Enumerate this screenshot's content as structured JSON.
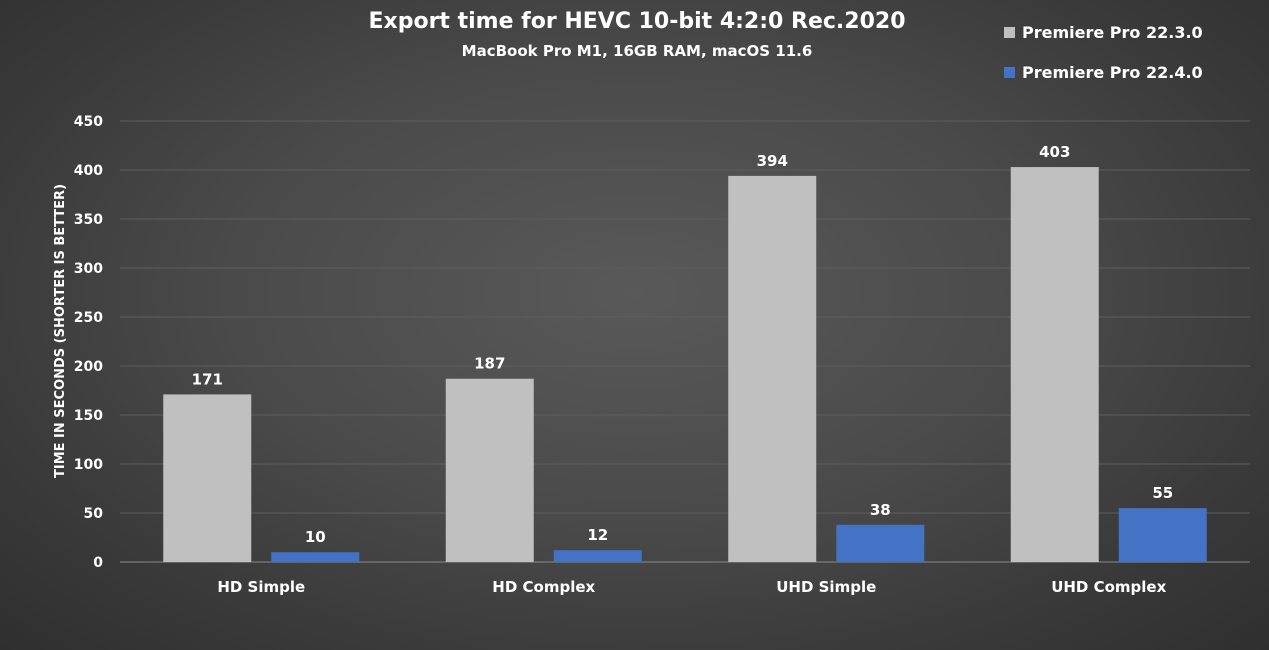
{
  "chart_data": {
    "type": "bar",
    "title": "Export time for HEVC 10-bit 4:2:0 Rec.2020",
    "subtitle": "MacBook Pro M1, 16GB RAM, macOS 11.6",
    "xlabel": "",
    "ylabel": "TIME IN SECONDS (SHORTER IS BETTER)",
    "ylim": [
      0,
      450
    ],
    "yticks": [
      0,
      50,
      100,
      150,
      200,
      250,
      300,
      350,
      400,
      450
    ],
    "categories": [
      "HD Simple",
      "HD Complex",
      "UHD Simple",
      "UHD Complex"
    ],
    "series": [
      {
        "name": "Premiere Pro 22.3.0",
        "color": "#c0c0c0",
        "values": [
          171,
          187,
          394,
          403
        ]
      },
      {
        "name": "Premiere Pro 22.4.0",
        "color": "#4472c4",
        "values": [
          10,
          12,
          38,
          55
        ]
      }
    ],
    "grid": true,
    "legend_position": "top-right",
    "data_labels": true
  }
}
